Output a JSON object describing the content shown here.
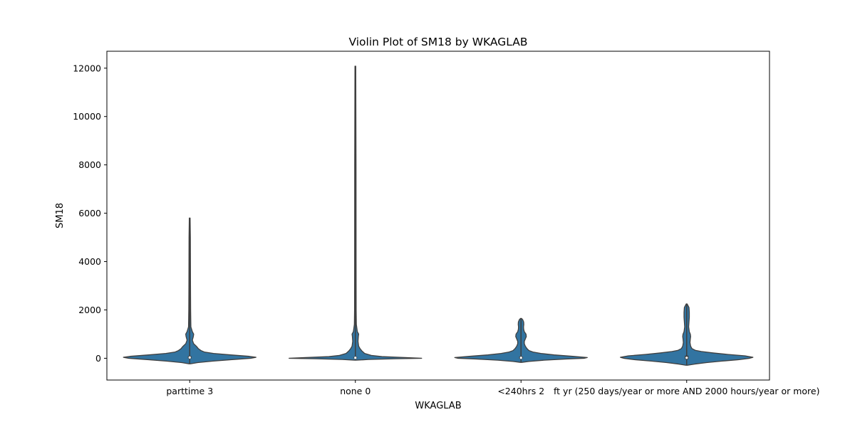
{
  "chart_data": {
    "type": "violin",
    "title": "Violin Plot of SM18 by WKAGLAB",
    "xlabel": "WKAGLAB",
    "ylabel": "SM18",
    "ylim": [
      -900,
      12700
    ],
    "yticks": [
      0,
      2000,
      4000,
      6000,
      8000,
      10000,
      12000
    ],
    "yticklabels": [
      "0",
      "2000",
      "4000",
      "6000",
      "8000",
      "10000",
      "12000"
    ],
    "categories": [
      "parttime 3",
      "none 0",
      "<240hrs 2",
      "ft yr (250 days/year or more AND 2000 hours/year or more)"
    ],
    "violins": [
      {
        "category": "parttime 3",
        "min": -230,
        "max": 5800,
        "profile": [
          [
            -230,
            0.01
          ],
          [
            -180,
            0.12
          ],
          [
            -120,
            0.34
          ],
          [
            -60,
            0.62
          ],
          [
            0,
            0.92
          ],
          [
            40,
            1.0
          ],
          [
            80,
            0.9
          ],
          [
            140,
            0.62
          ],
          [
            200,
            0.36
          ],
          [
            260,
            0.22
          ],
          [
            320,
            0.17
          ],
          [
            400,
            0.13
          ],
          [
            500,
            0.1
          ],
          [
            600,
            0.06
          ],
          [
            750,
            0.04
          ],
          [
            900,
            0.055
          ],
          [
            1000,
            0.06
          ],
          [
            1100,
            0.04
          ],
          [
            1300,
            0.018
          ],
          [
            1600,
            0.016
          ],
          [
            2000,
            0.014
          ],
          [
            3000,
            0.012
          ],
          [
            4000,
            0.011
          ],
          [
            5000,
            0.01
          ],
          [
            5800,
            0.006
          ]
        ],
        "median": 30,
        "q1": -10,
        "q3": 90
      },
      {
        "category": "none 0",
        "min": -80,
        "max": 12080,
        "profile": [
          [
            -80,
            0.01
          ],
          [
            -50,
            0.2
          ],
          [
            -20,
            0.6
          ],
          [
            0,
            1.0
          ],
          [
            30,
            0.75
          ],
          [
            70,
            0.4
          ],
          [
            120,
            0.24
          ],
          [
            200,
            0.14
          ],
          [
            300,
            0.1
          ],
          [
            400,
            0.07
          ],
          [
            500,
            0.05
          ],
          [
            700,
            0.04
          ],
          [
            900,
            0.045
          ],
          [
            1000,
            0.05
          ],
          [
            1100,
            0.03
          ],
          [
            1400,
            0.015
          ],
          [
            2000,
            0.012
          ],
          [
            4000,
            0.011
          ],
          [
            8000,
            0.01
          ],
          [
            12080,
            0.006
          ]
        ],
        "median": 20,
        "q1": -5,
        "q3": 60
      },
      {
        "category": "<240hrs 2",
        "min": -170,
        "max": 1650,
        "profile": [
          [
            -170,
            0.01
          ],
          [
            -130,
            0.12
          ],
          [
            -80,
            0.35
          ],
          [
            -30,
            0.68
          ],
          [
            0,
            0.95
          ],
          [
            30,
            1.0
          ],
          [
            80,
            0.78
          ],
          [
            140,
            0.5
          ],
          [
            200,
            0.3
          ],
          [
            260,
            0.18
          ],
          [
            320,
            0.12
          ],
          [
            400,
            0.09
          ],
          [
            500,
            0.065
          ],
          [
            600,
            0.05
          ],
          [
            700,
            0.05
          ],
          [
            800,
            0.065
          ],
          [
            900,
            0.08
          ],
          [
            1000,
            0.075
          ],
          [
            1100,
            0.05
          ],
          [
            1200,
            0.04
          ],
          [
            1300,
            0.038
          ],
          [
            1400,
            0.042
          ],
          [
            1500,
            0.04
          ],
          [
            1600,
            0.025
          ],
          [
            1650,
            0.006
          ]
        ],
        "median": 20,
        "q1": -15,
        "q3": 70
      },
      {
        "category": "ft yr (250 days/year or more AND 2000 hours/year or more)",
        "min": -290,
        "max": 2250,
        "profile": [
          [
            -290,
            0.01
          ],
          [
            -240,
            0.12
          ],
          [
            -180,
            0.3
          ],
          [
            -120,
            0.52
          ],
          [
            -60,
            0.78
          ],
          [
            0,
            0.95
          ],
          [
            40,
            1.0
          ],
          [
            100,
            0.88
          ],
          [
            160,
            0.62
          ],
          [
            220,
            0.4
          ],
          [
            280,
            0.22
          ],
          [
            330,
            0.13
          ],
          [
            400,
            0.08
          ],
          [
            500,
            0.06
          ],
          [
            650,
            0.05
          ],
          [
            800,
            0.055
          ],
          [
            900,
            0.06
          ],
          [
            1000,
            0.055
          ],
          [
            1100,
            0.04
          ],
          [
            1300,
            0.03
          ],
          [
            1500,
            0.035
          ],
          [
            1700,
            0.04
          ],
          [
            1900,
            0.04
          ],
          [
            2100,
            0.035
          ],
          [
            2250,
            0.006
          ]
        ],
        "median": 20,
        "q1": -40,
        "q3": 110
      }
    ],
    "fill_color": "#3274a1",
    "edge_color": "#3f3f3f",
    "grid": false,
    "legend": "none"
  }
}
